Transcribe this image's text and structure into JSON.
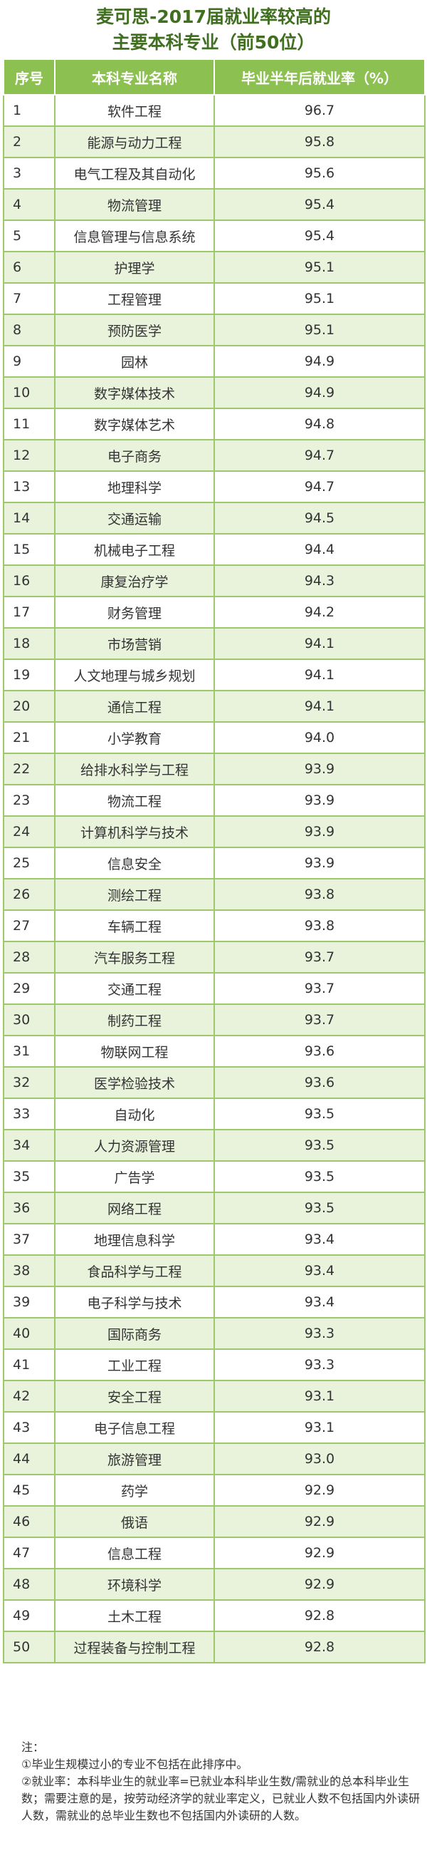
{
  "header": {
    "title": [
      "麦可思-2017届就业率较高的",
      "主要本科专业（前50位）"
    ]
  },
  "table": {
    "columns": [
      "序号",
      "本科专业名称",
      "毕业半年后就业率（%）"
    ],
    "rows": [
      [
        1,
        "软件工程",
        "96.7"
      ],
      [
        2,
        "能源与动力工程",
        "95.8"
      ],
      [
        3,
        "电气工程及其自动化",
        "95.6"
      ],
      [
        4,
        "物流管理",
        "95.4"
      ],
      [
        5,
        "信息管理与信息系统",
        "95.4"
      ],
      [
        6,
        "护理学",
        "95.1"
      ],
      [
        7,
        "工程管理",
        "95.1"
      ],
      [
        8,
        "预防医学",
        "95.1"
      ],
      [
        9,
        "园林",
        "94.9"
      ],
      [
        10,
        "数字媒体技术",
        "94.9"
      ],
      [
        11,
        "数字媒体艺术",
        "94.8"
      ],
      [
        12,
        "电子商务",
        "94.7"
      ],
      [
        13,
        "地理科学",
        "94.7"
      ],
      [
        14,
        "交通运输",
        "94.5"
      ],
      [
        15,
        "机械电子工程",
        "94.4"
      ],
      [
        16,
        "康复治疗学",
        "94.3"
      ],
      [
        17,
        "财务管理",
        "94.2"
      ],
      [
        18,
        "市场营销",
        "94.1"
      ],
      [
        19,
        "人文地理与城乡规划",
        "94.1"
      ],
      [
        20,
        "通信工程",
        "94.1"
      ],
      [
        21,
        "小学教育",
        "94.0"
      ],
      [
        22,
        "给排水科学与工程",
        "93.9"
      ],
      [
        23,
        "物流工程",
        "93.9"
      ],
      [
        24,
        "计算机科学与技术",
        "93.9"
      ],
      [
        25,
        "信息安全",
        "93.9"
      ],
      [
        26,
        "测绘工程",
        "93.8"
      ],
      [
        27,
        "车辆工程",
        "93.8"
      ],
      [
        28,
        "汽车服务工程",
        "93.7"
      ],
      [
        29,
        "交通工程",
        "93.7"
      ],
      [
        30,
        "制药工程",
        "93.7"
      ],
      [
        31,
        "物联网工程",
        "93.6"
      ],
      [
        32,
        "医学检验技术",
        "93.6"
      ],
      [
        33,
        "自动化",
        "93.5"
      ],
      [
        34,
        "人力资源管理",
        "93.5"
      ],
      [
        35,
        "广告学",
        "93.5"
      ],
      [
        36,
        "网络工程",
        "93.5"
      ],
      [
        37,
        "地理信息科学",
        "93.4"
      ],
      [
        38,
        "食品科学与工程",
        "93.4"
      ],
      [
        39,
        "电子科学与技术",
        "93.4"
      ],
      [
        40,
        "国际商务",
        "93.3"
      ],
      [
        41,
        "工业工程",
        "93.3"
      ],
      [
        42,
        "安全工程",
        "93.1"
      ],
      [
        43,
        "电子信息工程",
        "93.1"
      ],
      [
        44,
        "旅游管理",
        "93.0"
      ],
      [
        45,
        "药学",
        "92.9"
      ],
      [
        46,
        "俄语",
        "92.9"
      ],
      [
        47,
        "信息工程",
        "92.9"
      ],
      [
        48,
        "环境科学",
        "92.9"
      ],
      [
        49,
        "土木工程",
        "92.8"
      ],
      [
        50,
        "过程装备与控制工程",
        "92.8"
      ]
    ]
  },
  "notes": [
    "注：",
    "①毕业生规模过小的专业不包括在此排序中。",
    "②就业率：本科毕业生的就业率=已就业本科毕业生数/需就业的总本科毕业生数；需要注意的是，按劳动经济学的就业率定义，已就业人数不包括国内外读研人数，需就业的总毕业生数也不包括国内外读研的人数。"
  ]
}
